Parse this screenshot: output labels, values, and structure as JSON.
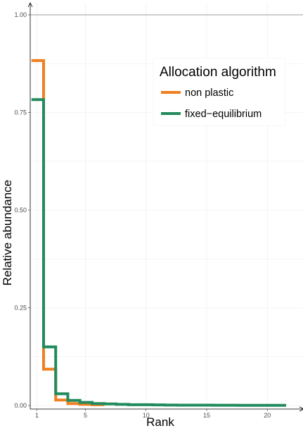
{
  "chart_data": {
    "type": "line",
    "subtype": "step",
    "title": "",
    "xlabel": "Rank",
    "ylabel": "Relative abundance",
    "xlim": [
      1,
      22
    ],
    "ylim": [
      0,
      1
    ],
    "x_ticks": [
      1,
      5,
      10,
      15,
      20
    ],
    "x_tick_labels": [
      "1",
      "5",
      "10",
      "15",
      "20"
    ],
    "y_ticks": [
      0,
      0.25,
      0.5,
      0.75,
      1
    ],
    "y_tick_labels": [
      "0.00",
      "0.25",
      "0.50",
      "0.75",
      "1.00"
    ],
    "grid": true,
    "reference_line_y": 1,
    "legend": {
      "title": "Allocation algorithm",
      "position": "top-right",
      "entries": [
        "non plastic",
        "fixed−equilibrium"
      ]
    },
    "series": [
      {
        "name": "non plastic",
        "color": "#f07f1f",
        "x": [
          1,
          2,
          3,
          4,
          5,
          6
        ],
        "y": [
          0.883,
          0.093,
          0.014,
          0.005,
          0.003,
          0.002
        ]
      },
      {
        "name": "fixed−equilibrium",
        "color": "#228b5d",
        "x": [
          1,
          2,
          3,
          4,
          5,
          6,
          7,
          8,
          9,
          10,
          11,
          12,
          13,
          14,
          15,
          16,
          17,
          18,
          19,
          20,
          21
        ],
        "y": [
          0.783,
          0.15,
          0.03,
          0.013,
          0.008,
          0.005,
          0.004,
          0.003,
          0.002,
          0.002,
          0.0015,
          0.0012,
          0.001,
          0.001,
          0.0008,
          0.0007,
          0.0006,
          0.0005,
          0.0005,
          0.0004,
          0.0004
        ]
      }
    ]
  }
}
